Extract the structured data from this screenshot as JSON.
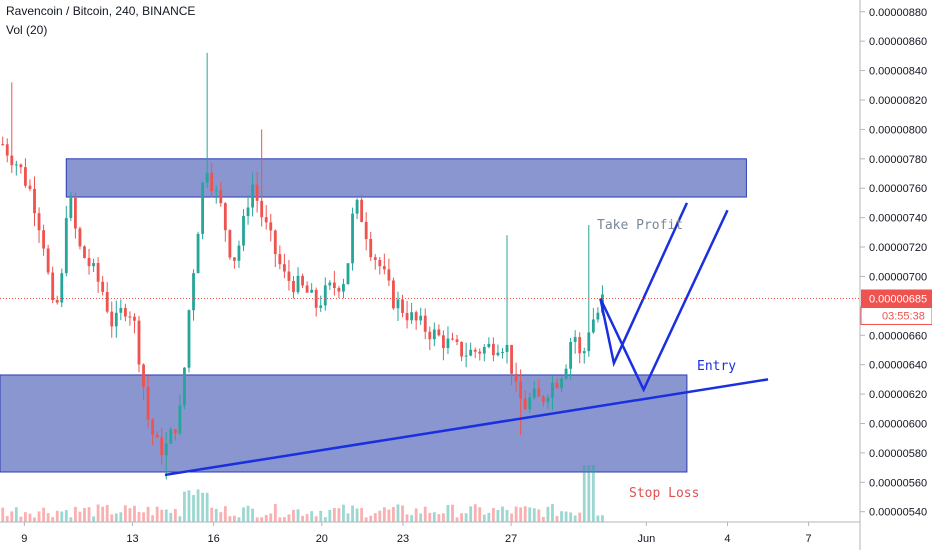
{
  "header": {
    "symbol_line": "Ravencoin / Bitcoin, 240, BINANCE",
    "volume_line": "Vol (20)"
  },
  "chart_data": {
    "type": "candlestick",
    "title": "Ravencoin / Bitcoin, 240, BINANCE",
    "y_ticks": [
      "0.00000880",
      "0.00000860",
      "0.00000840",
      "0.00000820",
      "0.00000800",
      "0.00000780",
      "0.00000760",
      "0.00000740",
      "0.00000720",
      "0.00000700",
      "0.00000680",
      "0.00000660",
      "0.00000640",
      "0.00000620",
      "0.00000600",
      "0.00000580",
      "0.00000560",
      "0.00000540"
    ],
    "y_tick_values": [
      880,
      860,
      840,
      820,
      800,
      780,
      760,
      740,
      720,
      700,
      680,
      660,
      640,
      620,
      600,
      580,
      560,
      540
    ],
    "ylim": [
      533,
      888
    ],
    "x_ticks": [
      {
        "label": "9",
        "day": 9
      },
      {
        "label": "13",
        "day": 13
      },
      {
        "label": "16",
        "day": 16
      },
      {
        "label": "20",
        "day": 20
      },
      {
        "label": "23",
        "day": 23
      },
      {
        "label": "27",
        "day": 27
      },
      {
        "label": "Jun",
        "day": 32
      },
      {
        "label": "4",
        "day": 35
      },
      {
        "label": "7",
        "day": 38
      }
    ],
    "xlim": [
      8.1,
      39.9
    ],
    "last_price": "0.00000685",
    "last_price_value": 685,
    "countdown": "03:55:38",
    "price_path": [
      [
        8.2,
        790
      ],
      [
        8.8,
        775
      ],
      [
        9.3,
        755
      ],
      [
        9.7,
        725
      ],
      [
        10.1,
        670
      ],
      [
        10.4,
        700
      ],
      [
        10.6,
        760
      ],
      [
        11.0,
        720
      ],
      [
        11.5,
        705
      ],
      [
        11.9,
        690
      ],
      [
        12.3,
        665
      ],
      [
        12.7,
        680
      ],
      [
        13.0,
        675
      ],
      [
        13.3,
        640
      ],
      [
        13.6,
        600
      ],
      [
        13.9,
        585
      ],
      [
        14.2,
        582
      ],
      [
        14.5,
        595
      ],
      [
        14.8,
        610
      ],
      [
        15.1,
        680
      ],
      [
        15.4,
        730
      ],
      [
        15.7,
        780
      ],
      [
        16.0,
        760
      ],
      [
        16.3,
        745
      ],
      [
        16.7,
        710
      ],
      [
        17.0,
        725
      ],
      [
        17.4,
        765
      ],
      [
        17.8,
        740
      ],
      [
        18.2,
        720
      ],
      [
        18.6,
        700
      ],
      [
        19.0,
        695
      ],
      [
        19.4,
        690
      ],
      [
        19.8,
        680
      ],
      [
        20.2,
        690
      ],
      [
        20.6,
        695
      ],
      [
        20.9,
        700
      ],
      [
        21.2,
        750
      ],
      [
        21.5,
        740
      ],
      [
        21.8,
        720
      ],
      [
        22.2,
        705
      ],
      [
        22.6,
        685
      ],
      [
        23.0,
        678
      ],
      [
        23.4,
        670
      ],
      [
        23.8,
        665
      ],
      [
        24.2,
        660
      ],
      [
        24.6,
        655
      ],
      [
        25.0,
        650
      ],
      [
        25.4,
        648
      ],
      [
        25.8,
        650
      ],
      [
        26.2,
        652
      ],
      [
        26.6,
        656
      ],
      [
        26.9,
        650
      ],
      [
        27.2,
        620
      ],
      [
        27.5,
        612
      ],
      [
        27.8,
        618
      ],
      [
        28.1,
        615
      ],
      [
        28.4,
        625
      ],
      [
        28.7,
        630
      ],
      [
        29.0,
        640
      ],
      [
        29.3,
        665
      ],
      [
        29.6,
        640
      ],
      [
        29.9,
        668
      ],
      [
        30.2,
        675
      ],
      [
        30.4,
        685
      ]
    ],
    "volume_scale": "relative 0-1",
    "annotations": [
      "Take Profit",
      "Entry",
      "Stop Loss"
    ],
    "zones": [
      {
        "name": "resistance-zone",
        "day_start": 10.55,
        "day_end": 35.7,
        "price_low": 754,
        "price_high": 780
      },
      {
        "name": "entry-zone",
        "day_start": 8.1,
        "day_end": 33.5,
        "price_low": 567,
        "price_high": 633
      }
    ],
    "trendline": {
      "from": [
        14.2,
        565
      ],
      "to": [
        36.5,
        630
      ]
    },
    "projection_paths": [
      [
        [
          30.3,
          685
        ],
        [
          30.8,
          641
        ],
        [
          33.5,
          750
        ]
      ],
      [
        [
          30.3,
          685
        ],
        [
          31.9,
          623
        ],
        [
          35.0,
          745
        ]
      ]
    ],
    "colors": {
      "up": "#26a69a",
      "down": "#ef5350",
      "zone_fill": "#5c6ebd",
      "zone_stroke": "#2a3cb3",
      "trend": "#1a2fe0",
      "annotation_text": "#7a8797",
      "stop_loss": "#e05050",
      "price_label": "#ef5350"
    }
  }
}
